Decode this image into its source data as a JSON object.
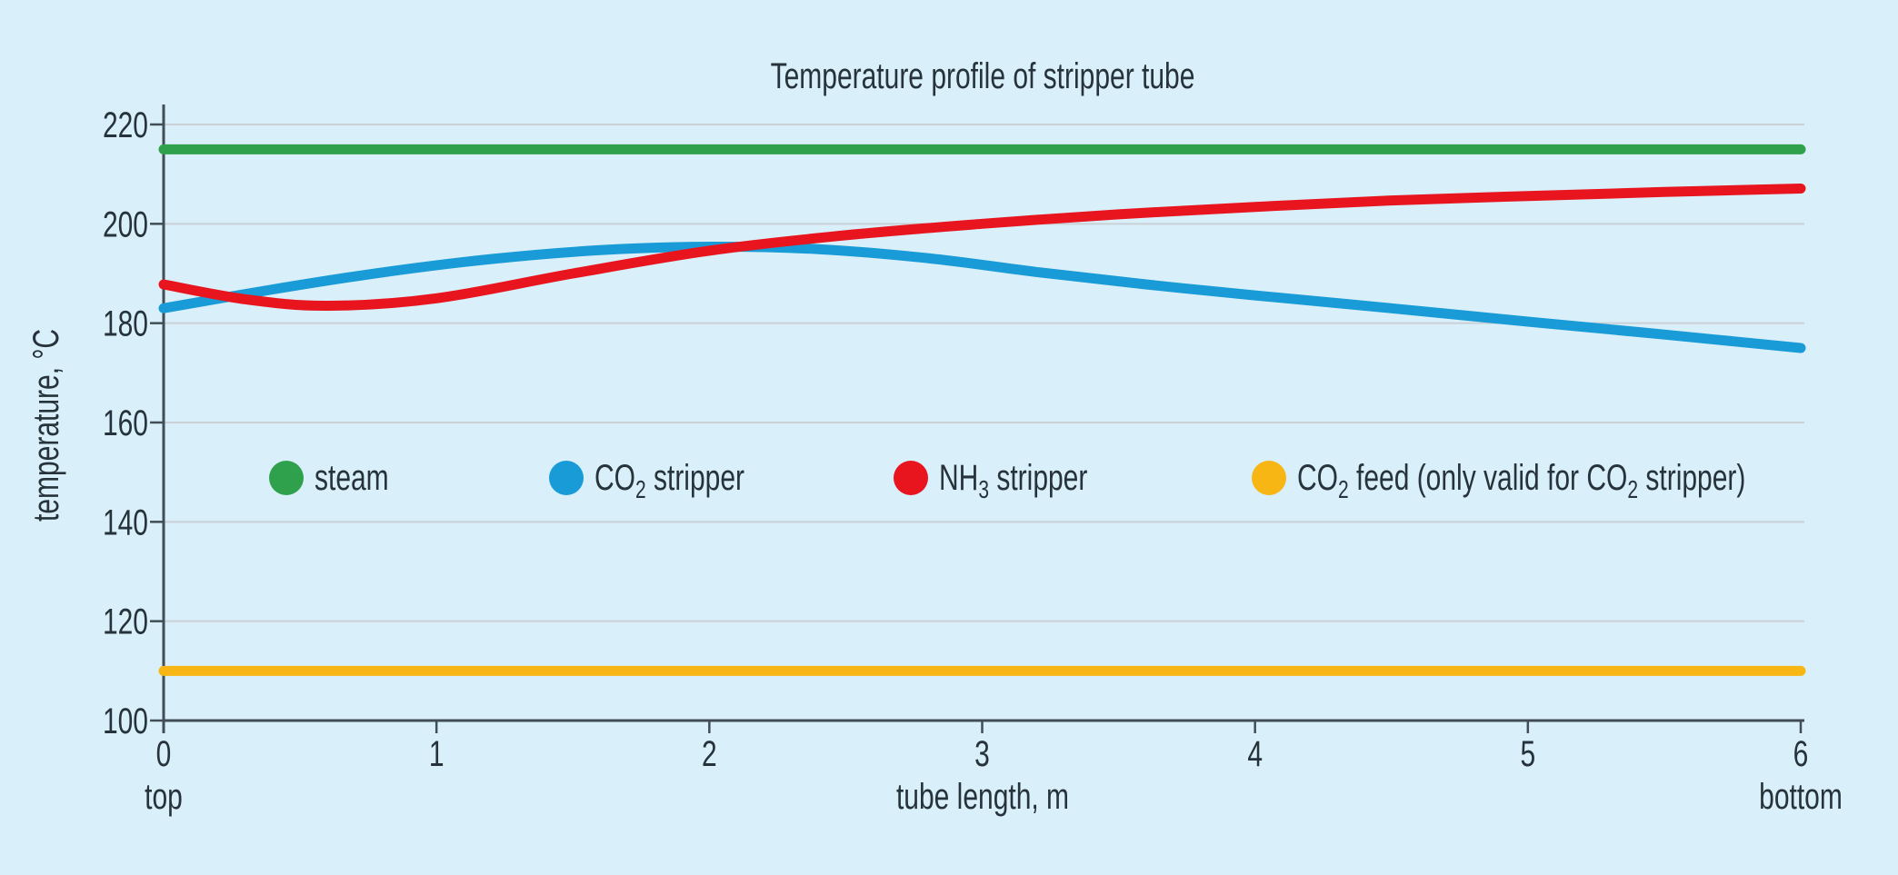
{
  "chart_data": {
    "type": "line",
    "title": "Temperature profile of stripper tube",
    "xlabel": "tube length, m",
    "ylabel": "temperature, °C",
    "x_end_labels": {
      "left": "top",
      "right": "bottom"
    },
    "x_ticks": [
      0,
      1,
      2,
      3,
      4,
      5,
      6
    ],
    "y_ticks": [
      100,
      120,
      140,
      160,
      180,
      200,
      220
    ],
    "xlim": [
      0,
      6
    ],
    "ylim": [
      100,
      224
    ],
    "grid": "horizontal",
    "background_color": "#d9eff9",
    "axis_color": "#414e56",
    "grid_color": "#c9d1d7",
    "text_color": "#27333b",
    "series": [
      {
        "key": "steam",
        "name": "steam",
        "color": "#2fa14d",
        "points": [
          [
            0,
            215
          ],
          [
            6,
            215
          ]
        ]
      },
      {
        "key": "co2-stripper",
        "name": "CO2 stripper",
        "color": "#189bd7",
        "points": [
          [
            0,
            183
          ],
          [
            0.4,
            186.8
          ],
          [
            0.8,
            190.2
          ],
          [
            1.2,
            192.9
          ],
          [
            1.6,
            194.7
          ],
          [
            2,
            195.4
          ],
          [
            2.4,
            194.9
          ],
          [
            2.8,
            193.1
          ],
          [
            3.2,
            190.3
          ],
          [
            3.6,
            187.8
          ],
          [
            4,
            185.6
          ],
          [
            4.5,
            183
          ],
          [
            5,
            180.3
          ],
          [
            5.5,
            177.7
          ],
          [
            6,
            175
          ]
        ]
      },
      {
        "key": "nh3-stripper",
        "name": "NH3 stripper",
        "color": "#e8151f",
        "points": [
          [
            0,
            187.8
          ],
          [
            0.3,
            184.8
          ],
          [
            0.6,
            183.5
          ],
          [
            1,
            185
          ],
          [
            1.5,
            190
          ],
          [
            2,
            194.6
          ],
          [
            2.5,
            197.7
          ],
          [
            3,
            200
          ],
          [
            3.5,
            201.9
          ],
          [
            4,
            203.4
          ],
          [
            4.5,
            204.7
          ],
          [
            5,
            205.6
          ],
          [
            5.5,
            206.4
          ],
          [
            6,
            207.1
          ]
        ]
      },
      {
        "key": "co2-feed",
        "name": "CO2 feed (only valid for CO2 stripper)",
        "color": "#f7b614",
        "points": [
          [
            0,
            110
          ],
          [
            6,
            110
          ]
        ]
      }
    ],
    "legend": {
      "position": "inside-middle-left",
      "items": [
        {
          "key": "steam",
          "segments": [
            {
              "text": "steam"
            }
          ]
        },
        {
          "key": "co2-stripper",
          "segments": [
            {
              "text": "CO"
            },
            {
              "text": "2",
              "sub": true
            },
            {
              "text": " stripper"
            }
          ]
        },
        {
          "key": "nh3-stripper",
          "segments": [
            {
              "text": "NH"
            },
            {
              "text": "3",
              "sub": true
            },
            {
              "text": " stripper"
            }
          ]
        },
        {
          "key": "co2-feed",
          "segments": [
            {
              "text": "CO"
            },
            {
              "text": "2",
              "sub": true
            },
            {
              "text": " feed (only valid for CO"
            },
            {
              "text": "2",
              "sub": true
            },
            {
              "text": " stripper)"
            }
          ]
        }
      ]
    }
  }
}
